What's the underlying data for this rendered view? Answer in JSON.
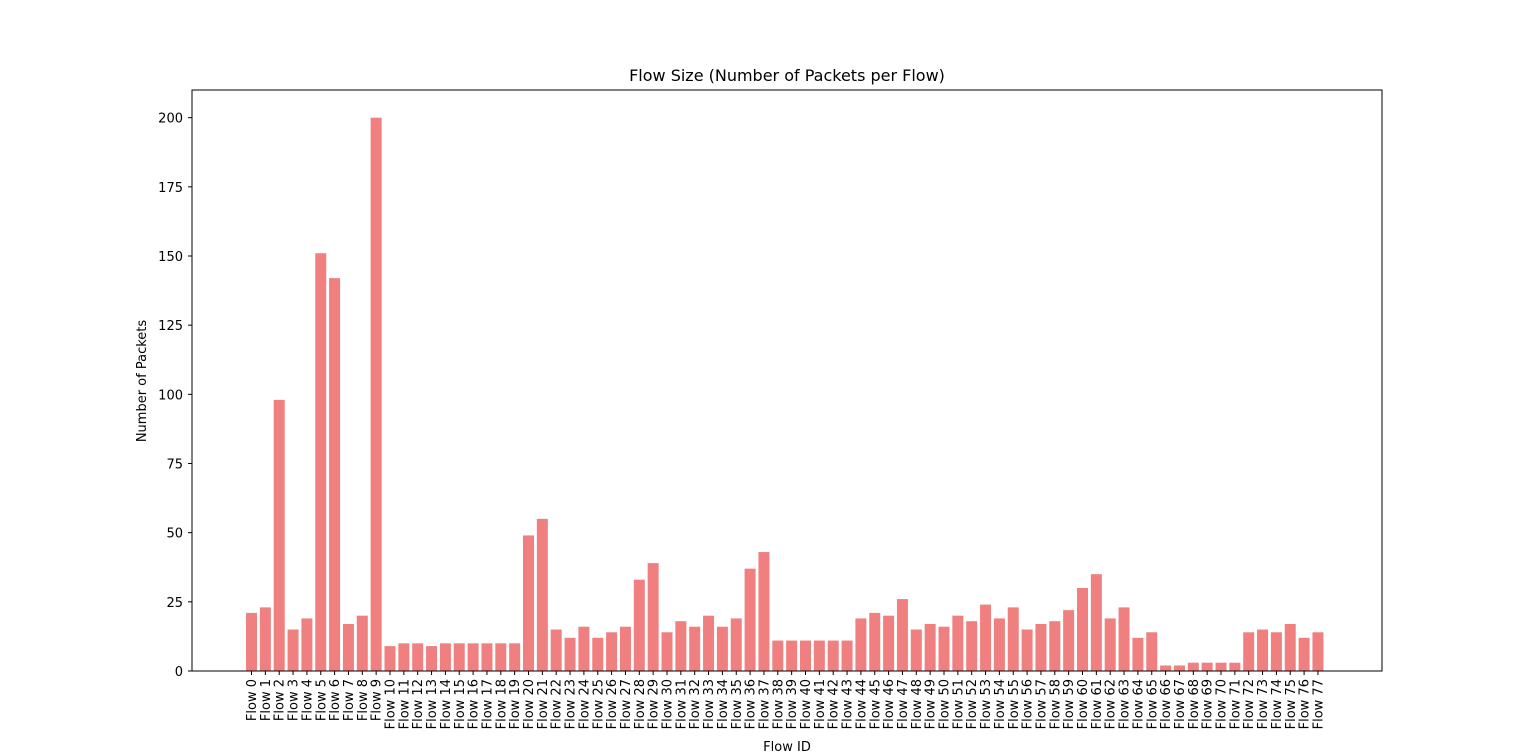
{
  "chart_data": {
    "type": "bar",
    "title": "Flow Size (Number of Packets per Flow)",
    "xlabel": "Flow ID",
    "ylabel": "Number of Packets",
    "ylim": [
      0,
      210
    ],
    "yticks": [
      "0",
      "25",
      "50",
      "75",
      "100",
      "125",
      "150",
      "175",
      "200"
    ],
    "grid": false,
    "bar_color": "#f08080",
    "categories": [
      "Flow 0",
      "Flow 1",
      "Flow 2",
      "Flow 3",
      "Flow 4",
      "Flow 5",
      "Flow 6",
      "Flow 7",
      "Flow 8",
      "Flow 9",
      "Flow 10",
      "Flow 11",
      "Flow 12",
      "Flow 13",
      "Flow 14",
      "Flow 15",
      "Flow 16",
      "Flow 17",
      "Flow 18",
      "Flow 19",
      "Flow 20",
      "Flow 21",
      "Flow 22",
      "Flow 23",
      "Flow 24",
      "Flow 25",
      "Flow 26",
      "Flow 27",
      "Flow 28",
      "Flow 29",
      "Flow 30",
      "Flow 31",
      "Flow 32",
      "Flow 33",
      "Flow 34",
      "Flow 35",
      "Flow 36",
      "Flow 37",
      "Flow 38",
      "Flow 39",
      "Flow 40",
      "Flow 41",
      "Flow 42",
      "Flow 43",
      "Flow 44",
      "Flow 45",
      "Flow 46",
      "Flow 47",
      "Flow 48",
      "Flow 49",
      "Flow 50",
      "Flow 51",
      "Flow 52",
      "Flow 53",
      "Flow 54",
      "Flow 55",
      "Flow 56",
      "Flow 57",
      "Flow 58",
      "Flow 59",
      "Flow 60",
      "Flow 61",
      "Flow 62",
      "Flow 63",
      "Flow 64",
      "Flow 65",
      "Flow 66",
      "Flow 67",
      "Flow 68",
      "Flow 69",
      "Flow 70",
      "Flow 71",
      "Flow 72",
      "Flow 73",
      "Flow 74",
      "Flow 75",
      "Flow 76",
      "Flow 77"
    ],
    "values": [
      21,
      23,
      98,
      15,
      19,
      151,
      142,
      17,
      20,
      200,
      9,
      10,
      10,
      9,
      10,
      10,
      10,
      10,
      10,
      10,
      49,
      55,
      15,
      12,
      16,
      12,
      14,
      16,
      33,
      39,
      14,
      18,
      16,
      20,
      16,
      19,
      37,
      43,
      11,
      11,
      11,
      11,
      11,
      11,
      19,
      21,
      20,
      26,
      15,
      17,
      16,
      20,
      18,
      24,
      19,
      23,
      15,
      17,
      18,
      22,
      30,
      35,
      19,
      23,
      12,
      14,
      2,
      2,
      3,
      3,
      3,
      3,
      14,
      15,
      14,
      17,
      12,
      14
    ]
  }
}
